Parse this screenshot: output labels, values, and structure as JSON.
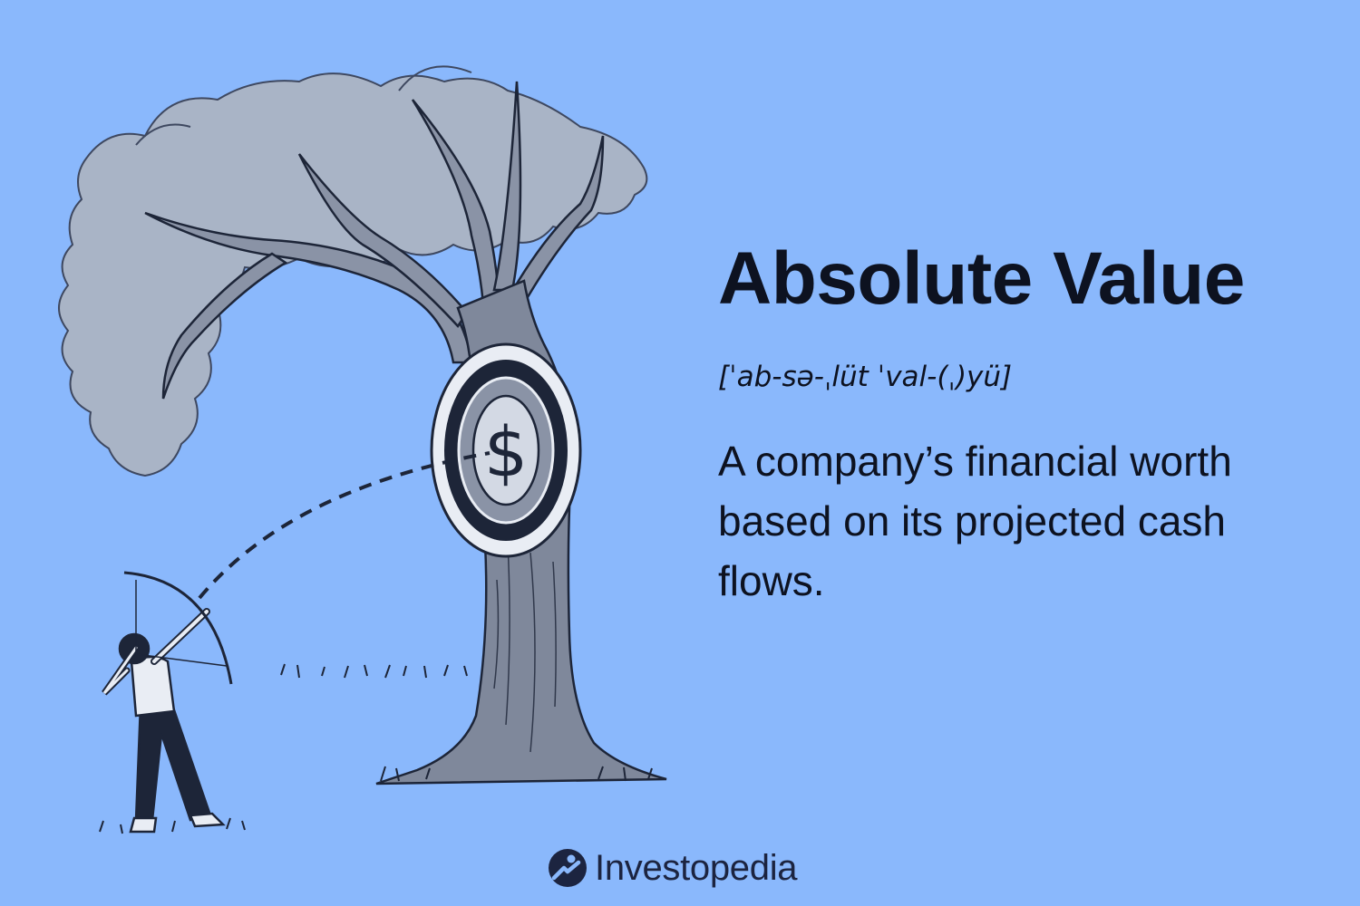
{
  "definition": {
    "term": "Absolute Value",
    "pronunciation": "[ˈab-sə-ˌlüt ˈval-(ˌ)yü]",
    "meaning": "A company’s financial worth based on its projected cash flows."
  },
  "illustration": {
    "target_symbol": "$"
  },
  "brand": {
    "name": "Investopedia"
  },
  "colors": {
    "background": "#8ab8fc",
    "text": "#0d1220",
    "foliage": "#a9b4c6",
    "trunk": "#7f889b",
    "outline": "#1d2538"
  }
}
